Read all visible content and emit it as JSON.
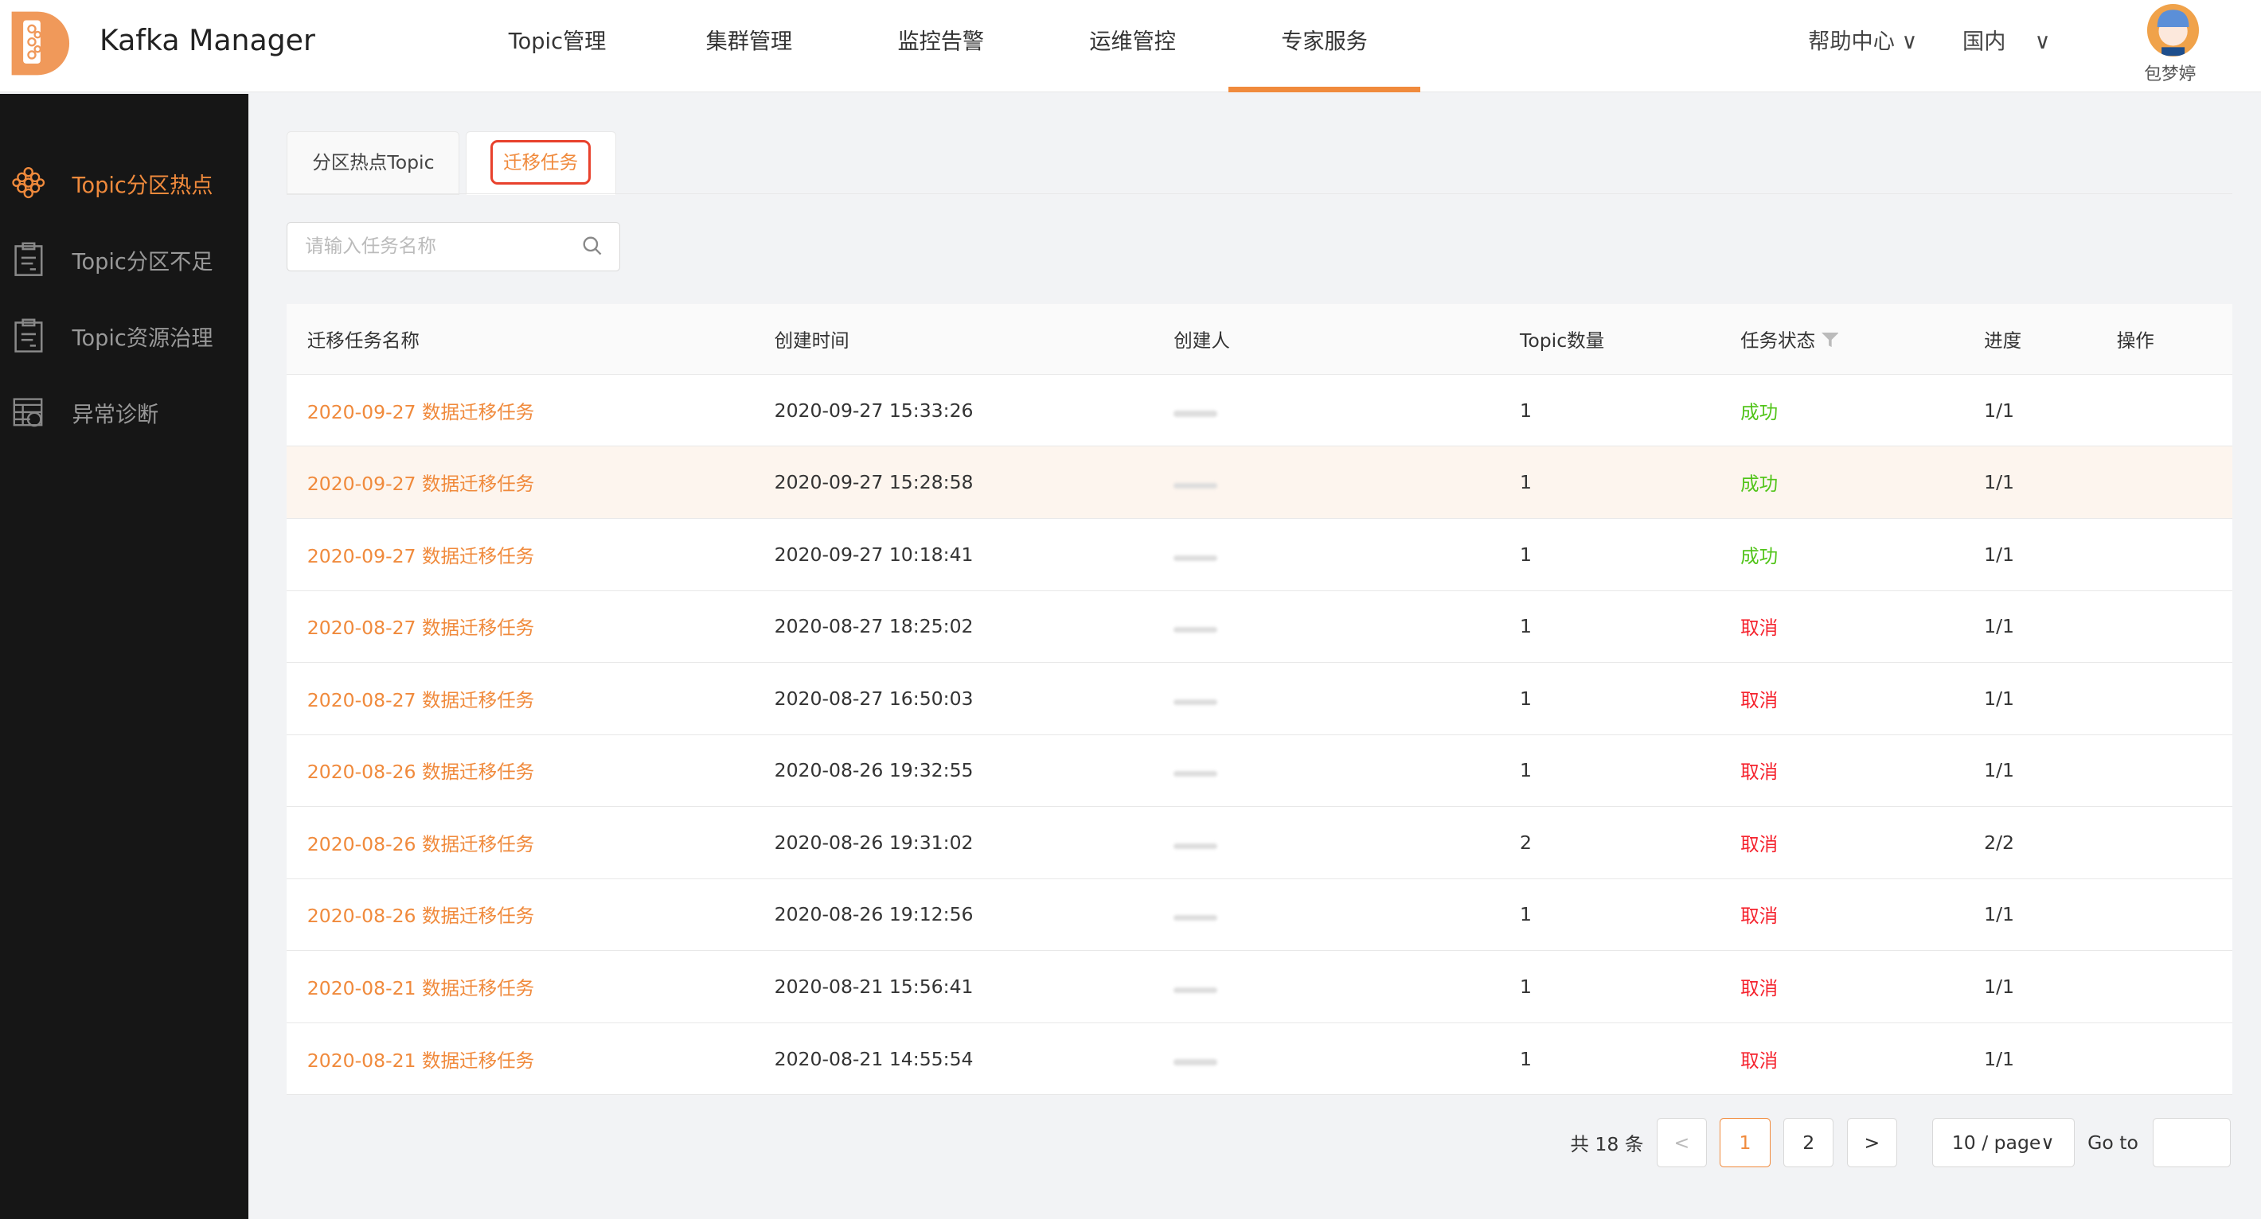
{
  "header": {
    "app_title": "Kafka Manager",
    "nav": [
      "Topic管理",
      "集群管理",
      "监控告警",
      "运维管控",
      "专家服务"
    ],
    "active_nav": 4,
    "help": "帮助中心",
    "region": "国内",
    "username": "包梦婷"
  },
  "sidebar": {
    "items": [
      {
        "label": "Topic分区热点",
        "icon": "honeycomb-icon",
        "active": true
      },
      {
        "label": "Topic分区不足",
        "icon": "clipboard-icon"
      },
      {
        "label": "Topic资源治理",
        "icon": "clipboard-icon"
      },
      {
        "label": "异常诊断",
        "icon": "table-dollar-icon"
      }
    ]
  },
  "tabs": [
    {
      "label": "分区热点Topic"
    },
    {
      "label": "迁移任务",
      "active": true
    }
  ],
  "search": {
    "placeholder": "请输入任务名称"
  },
  "table": {
    "columns": [
      "迁移任务名称",
      "创建时间",
      "创建人",
      "Topic数量",
      "任务状态",
      "进度",
      "操作"
    ],
    "rows": [
      {
        "name": "2020-09-27 数据迁移任务",
        "time": "2020-09-27 15:33:26",
        "count": "1",
        "status": "成功",
        "progress": "1/1"
      },
      {
        "name": "2020-09-27 数据迁移任务",
        "time": "2020-09-27 15:28:58",
        "count": "1",
        "status": "成功",
        "progress": "1/1"
      },
      {
        "name": "2020-09-27 数据迁移任务",
        "time": "2020-09-27 10:18:41",
        "count": "1",
        "status": "成功",
        "progress": "1/1"
      },
      {
        "name": "2020-08-27 数据迁移任务",
        "time": "2020-08-27 18:25:02",
        "count": "1",
        "status": "取消",
        "progress": "1/1"
      },
      {
        "name": "2020-08-27 数据迁移任务",
        "time": "2020-08-27 16:50:03",
        "count": "1",
        "status": "取消",
        "progress": "1/1"
      },
      {
        "name": "2020-08-26 数据迁移任务",
        "time": "2020-08-26 19:32:55",
        "count": "1",
        "status": "取消",
        "progress": "1/1"
      },
      {
        "name": "2020-08-26 数据迁移任务",
        "time": "2020-08-26 19:31:02",
        "count": "2",
        "status": "取消",
        "progress": "2/2"
      },
      {
        "name": "2020-08-26 数据迁移任务",
        "time": "2020-08-26 19:12:56",
        "count": "1",
        "status": "取消",
        "progress": "1/1"
      },
      {
        "name": "2020-08-21 数据迁移任务",
        "time": "2020-08-21 15:56:41",
        "count": "1",
        "status": "取消",
        "progress": "1/1"
      },
      {
        "name": "2020-08-21 数据迁移任务",
        "time": "2020-08-21 14:55:54",
        "count": "1",
        "status": "取消",
        "progress": "1/1"
      }
    ]
  },
  "pagination": {
    "total": "共 18 条",
    "pages": [
      "1",
      "2"
    ],
    "current": "1",
    "page_size": "10 / page",
    "goto": "Go to"
  },
  "colors": {
    "accent": "#f08a3c",
    "success": "#52c41a",
    "cancel": "#f5222d",
    "sidebar": "#161616"
  }
}
